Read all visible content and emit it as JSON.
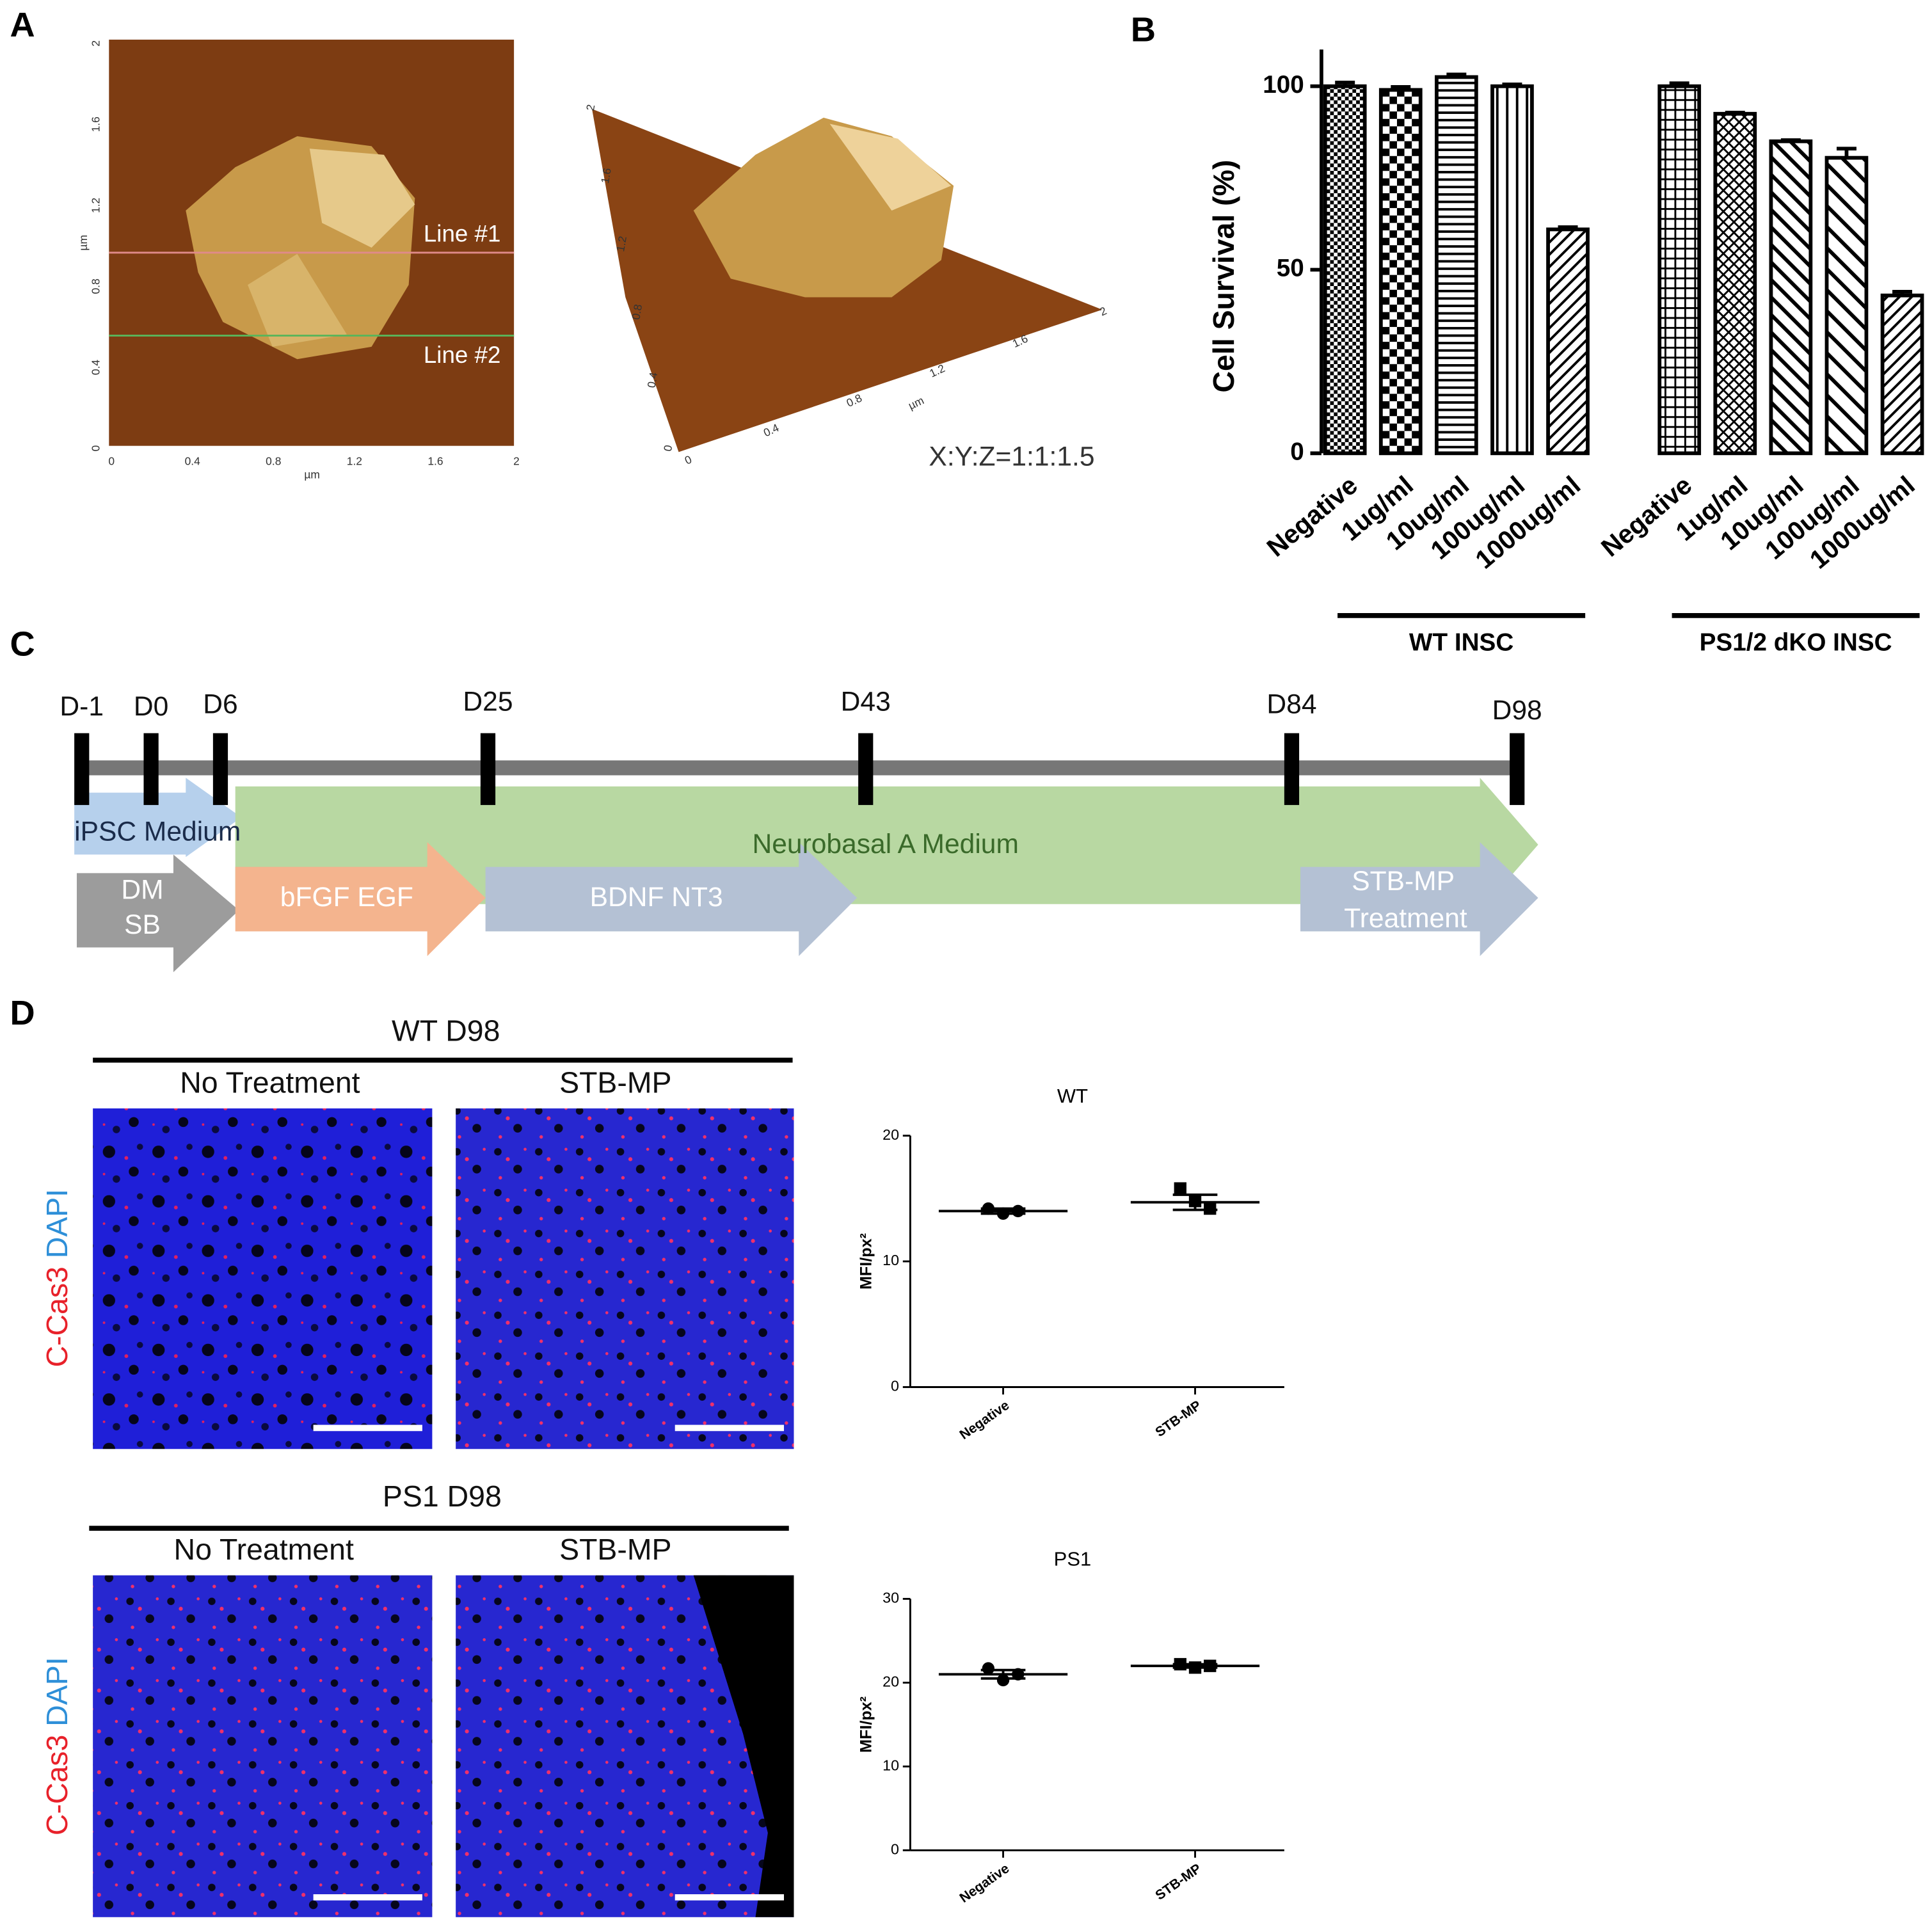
{
  "panel_labels": [
    "A",
    "B",
    "C",
    "D"
  ],
  "panel_a": {
    "line_labels": [
      "Line #1",
      "Line #2"
    ],
    "ratio": "X:Y:Z=1:1:1.5",
    "unit": "µm",
    "ticks": [
      "0",
      "0.4",
      "0.8",
      "1.2",
      "1.6",
      "2"
    ]
  },
  "panel_c": {
    "days": [
      "D-1",
      "D0",
      "D6",
      "D25",
      "D43",
      "D84",
      "D98"
    ],
    "media": [
      "iPSC Medium",
      "Neurobasal A Medium"
    ],
    "steps": [
      [
        "DM",
        "SB"
      ],
      [
        "bFGF EGF"
      ],
      [
        "BDNF NT3"
      ],
      [
        "STB-MP",
        "Treatment"
      ]
    ]
  },
  "panel_d": {
    "row_titles": [
      "WT D98",
      "PS1 D98"
    ],
    "columns": [
      "No Treatment",
      "STB-MP"
    ],
    "stain_red": "C-Cas3",
    "stain_blue": "DAPI"
  },
  "chart_data": [
    {
      "type": "bar",
      "y_label": "Cell Survival (%)",
      "categories": [
        "Negative",
        "1ug/ml",
        "10ug/ml",
        "100ug/ml",
        "1000ug/ml"
      ],
      "series": [
        {
          "name": "WT INSC",
          "values": [
            100,
            99,
            102.5,
            100,
            61
          ],
          "errors": [
            1,
            0.8,
            0.7,
            0.5,
            0.6
          ]
        },
        {
          "name": "PS1/2 dKO INSC",
          "values": [
            100,
            92.5,
            85,
            80.5,
            43
          ],
          "errors": [
            0.8,
            0.3,
            0.3,
            2.5,
            1
          ]
        }
      ],
      "color": "#000000",
      "ylim": [
        0,
        110
      ],
      "yticks": [
        0,
        50,
        100
      ]
    },
    {
      "type": "dot",
      "title": "WT",
      "y_label": "MFI/px²",
      "categories": [
        "Negative",
        "STB-MP"
      ],
      "points": [
        [
          14.2,
          13.8,
          14.0
        ],
        [
          15.8,
          14.8,
          14.2
        ]
      ],
      "means": [
        14,
        14.7
      ],
      "sd": [
        0.2,
        0.6
      ],
      "color": "#000000",
      "ylim": [
        0,
        20
      ],
      "yticks": [
        0,
        10,
        20
      ]
    },
    {
      "type": "dot",
      "title": "PS1",
      "y_label": "MFI/px²",
      "categories": [
        "Negative",
        "STB-MP"
      ],
      "points": [
        [
          21.7,
          20.3,
          21.0
        ],
        [
          22.2,
          21.8,
          22.0
        ]
      ],
      "means": [
        21,
        22
      ],
      "sd": [
        0.5,
        0.2
      ],
      "color": "#000000",
      "ylim": [
        0,
        30
      ],
      "yticks": [
        0,
        10,
        20,
        30
      ]
    }
  ]
}
